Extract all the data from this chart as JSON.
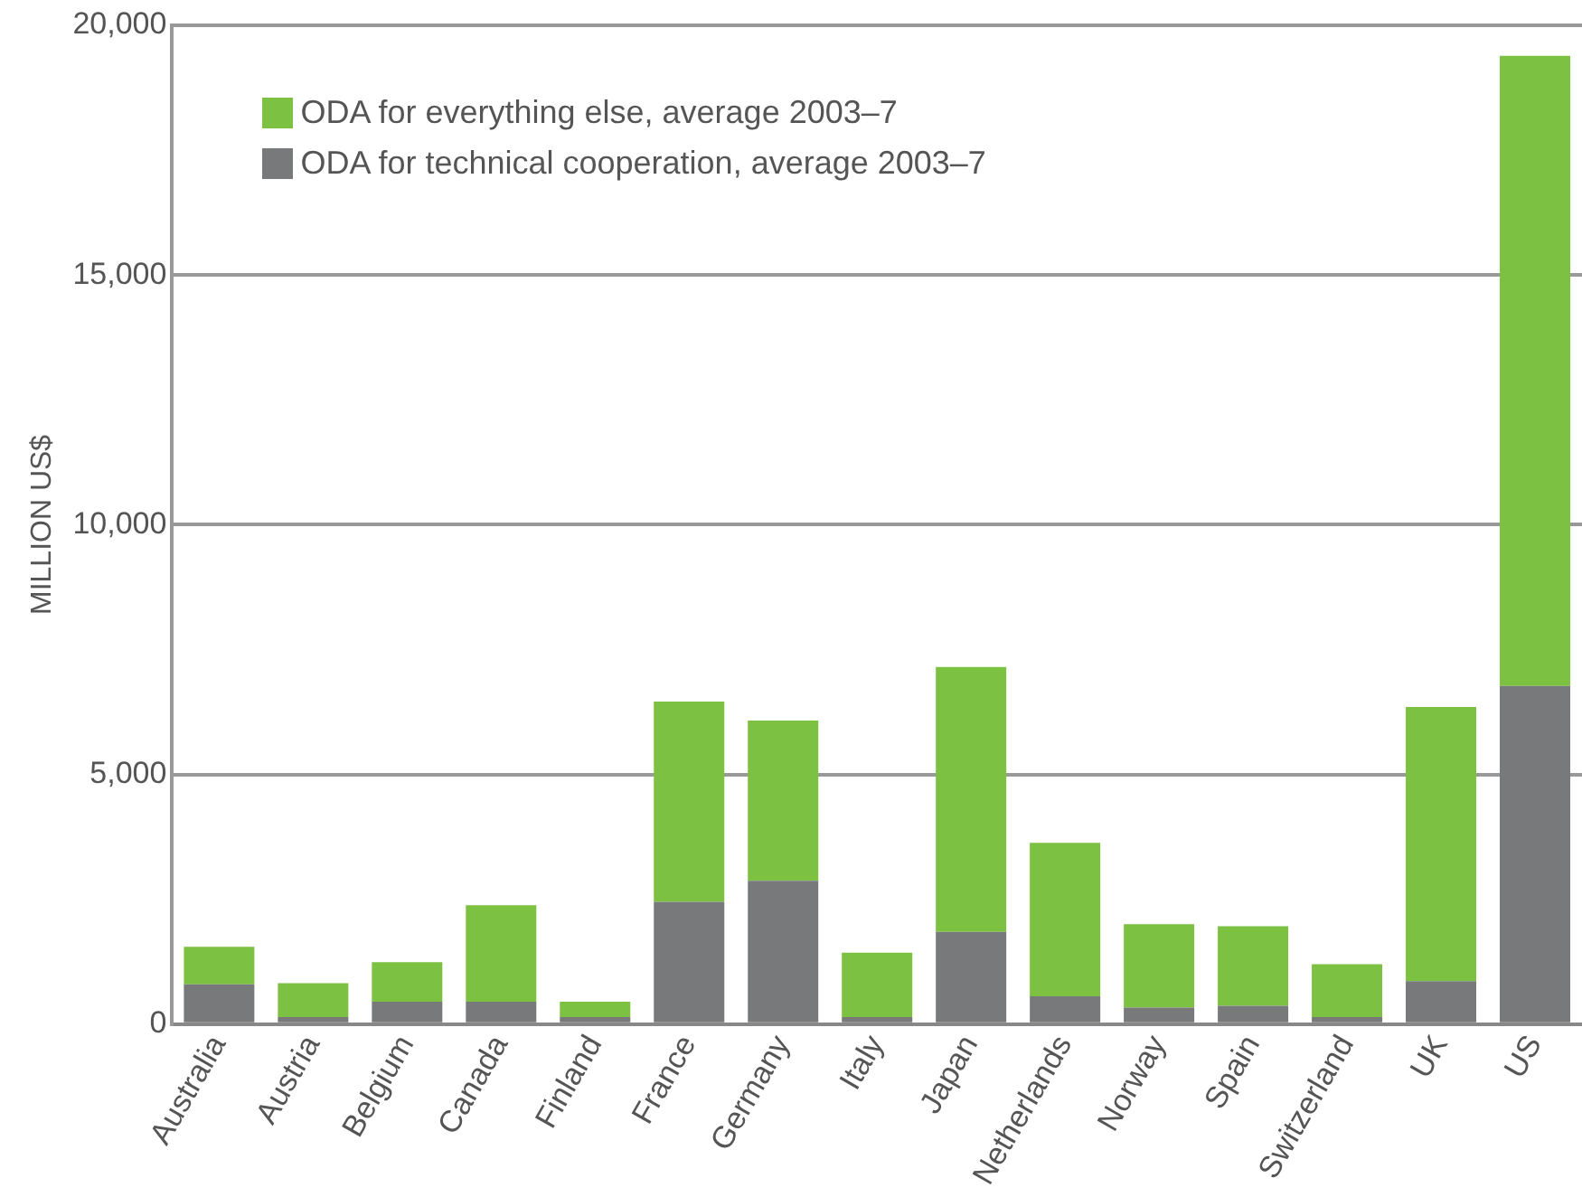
{
  "chart_data": {
    "type": "bar",
    "ylabel": "MILLION US$",
    "stacked": true,
    "categories": [
      "Australia",
      "Austria",
      "Belgium",
      "Canada",
      "Finland",
      "France",
      "Germany",
      "Italy",
      "Japan",
      "Netherlands",
      "Norway",
      "Spain",
      "Switzerland",
      "UK",
      "US"
    ],
    "series": [
      {
        "name": "ODA for technical cooperation, average 2003–7",
        "color": "#78797b",
        "values": [
          800,
          140,
          450,
          450,
          140,
          2450,
          2870,
          140,
          1850,
          560,
          330,
          370,
          140,
          860,
          6770
        ]
      },
      {
        "name": "ODA for everything else, average 2003–7",
        "color": "#7dc142",
        "values": [
          750,
          680,
          790,
          1930,
          310,
          4010,
          3210,
          1290,
          5300,
          3070,
          1670,
          1590,
          1060,
          5490,
          12620
        ]
      }
    ],
    "ylim": [
      0,
      20000
    ],
    "yticks": [
      {
        "value": 0,
        "label": "0"
      },
      {
        "value": 5000,
        "label": "5,000"
      },
      {
        "value": 10000,
        "label": "10,000"
      },
      {
        "value": 15000,
        "label": "15,000"
      },
      {
        "value": 20000,
        "label": "20,000"
      }
    ],
    "grid": "y",
    "legend": "top left"
  }
}
